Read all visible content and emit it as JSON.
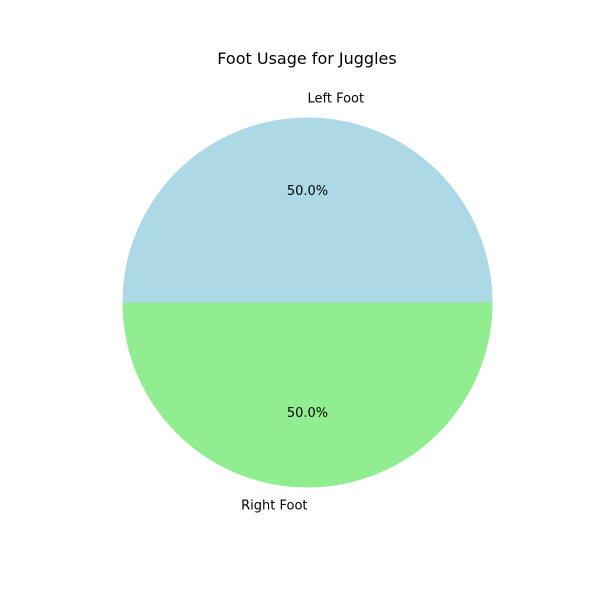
{
  "chart_data": {
    "type": "pie",
    "title": "Foot Usage for Juggles",
    "slices": [
      {
        "label": "Left Foot",
        "value": 50.0,
        "pct_label": "50.0%",
        "color": "#add8e6"
      },
      {
        "label": "Right Foot",
        "value": 50.0,
        "pct_label": "50.0%",
        "color": "#90ee90"
      }
    ],
    "start_angle_deg": 0,
    "direction": "counterclockwise",
    "legend": false
  }
}
